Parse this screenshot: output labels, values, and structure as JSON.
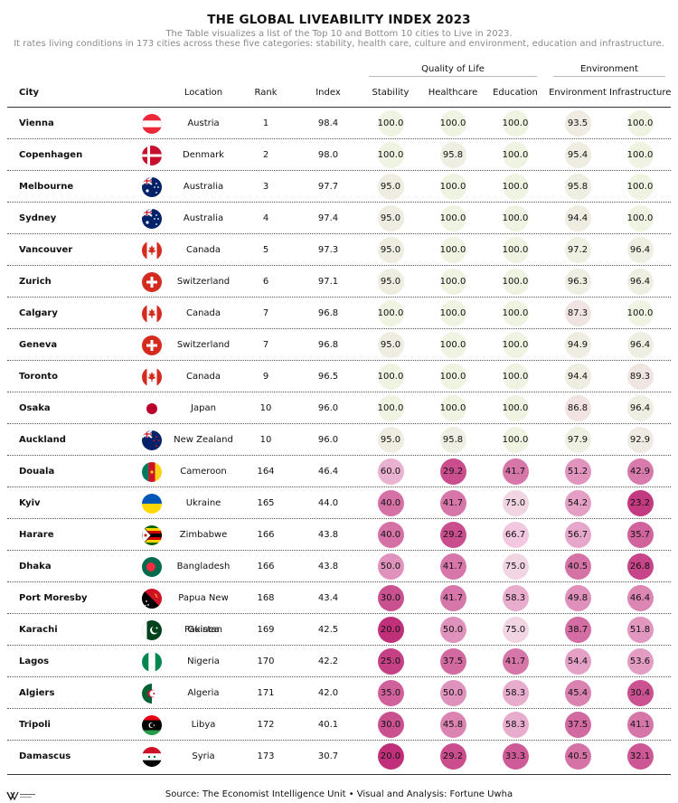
{
  "title": "THE GLOBAL LIVEABILITY INDEX 2023",
  "subtitle_1": "The Table visualizes a list of the Top 10 and Bottom 10 cities to Live in 2023.",
  "subtitle_2": "It rates living conditions in 173 cities across these five categories: stability, health care, culture and environment, education and infrastructure.",
  "groups": {
    "quality": "Quality of Life",
    "environment": "Environment"
  },
  "columns": {
    "city": "City",
    "location": "Location",
    "rank": "Rank",
    "index": "Index",
    "stability": "Stability",
    "healthcare": "Healthcare",
    "education": "Education",
    "environment": "Environment",
    "infrastructure": "Infrastructure"
  },
  "footer": "Source: The Economist Intelligence Unit • Visual and Analysis: Fortune Uwha",
  "logo_text": "FORTUNE UWHA",
  "colors": {
    "high": "#eef3e2",
    "low": "#c0307a",
    "rule": "#333333"
  },
  "chart_data": {
    "type": "table",
    "title": "THE GLOBAL LIVEABILITY INDEX 2023",
    "columns": [
      "City",
      "Location",
      "Rank",
      "Index",
      "Stability",
      "Healthcare",
      "Education",
      "Environment",
      "Infrastructure"
    ],
    "rows": [
      {
        "city": "Vienna",
        "location": "Austria",
        "flag": "austria-flag-icon",
        "rank": "1",
        "index": "98.4",
        "stability": "100.0",
        "healthcare": "100.0",
        "education": "100.0",
        "environment": "93.5",
        "infrastructure": "100.0"
      },
      {
        "city": "Copenhagen",
        "location": "Denmark",
        "flag": "denmark-flag-icon",
        "rank": "2",
        "index": "98.0",
        "stability": "100.0",
        "healthcare": "95.8",
        "education": "100.0",
        "environment": "95.4",
        "infrastructure": "100.0"
      },
      {
        "city": "Melbourne",
        "location": "Australia",
        "flag": "australia-flag-icon",
        "rank": "3",
        "index": "97.7",
        "stability": "95.0",
        "healthcare": "100.0",
        "education": "100.0",
        "environment": "95.8",
        "infrastructure": "100.0"
      },
      {
        "city": "Sydney",
        "location": "Australia",
        "flag": "australia-flag-icon",
        "rank": "4",
        "index": "97.4",
        "stability": "95.0",
        "healthcare": "100.0",
        "education": "100.0",
        "environment": "94.4",
        "infrastructure": "100.0"
      },
      {
        "city": "Vancouver",
        "location": "Canada",
        "flag": "canada-flag-icon",
        "rank": "5",
        "index": "97.3",
        "stability": "95.0",
        "healthcare": "100.0",
        "education": "100.0",
        "environment": "97.2",
        "infrastructure": "96.4"
      },
      {
        "city": "Zurich",
        "location": "Switzerland",
        "flag": "switzerland-flag-icon",
        "rank": "6",
        "index": "97.1",
        "stability": "95.0",
        "healthcare": "100.0",
        "education": "100.0",
        "environment": "96.3",
        "infrastructure": "96.4"
      },
      {
        "city": "Calgary",
        "location": "Canada",
        "flag": "canada-flag-icon",
        "rank": "7",
        "index": "96.8",
        "stability": "100.0",
        "healthcare": "100.0",
        "education": "100.0",
        "environment": "87.3",
        "infrastructure": "100.0"
      },
      {
        "city": "Geneva",
        "location": "Switzerland",
        "flag": "switzerland-flag-icon",
        "rank": "7",
        "index": "96.8",
        "stability": "95.0",
        "healthcare": "100.0",
        "education": "100.0",
        "environment": "94.9",
        "infrastructure": "96.4"
      },
      {
        "city": "Toronto",
        "location": "Canada",
        "flag": "canada-flag-icon",
        "rank": "9",
        "index": "96.5",
        "stability": "100.0",
        "healthcare": "100.0",
        "education": "100.0",
        "environment": "94.4",
        "infrastructure": "89.3"
      },
      {
        "city": "Osaka",
        "location": "Japan",
        "flag": "japan-flag-icon",
        "rank": "10",
        "index": "96.0",
        "stability": "100.0",
        "healthcare": "100.0",
        "education": "100.0",
        "environment": "86.8",
        "infrastructure": "96.4"
      },
      {
        "city": "Auckland",
        "location": "New Zealand",
        "flag": "new-zealand-flag-icon",
        "rank": "10",
        "index": "96.0",
        "stability": "95.0",
        "healthcare": "95.8",
        "education": "100.0",
        "environment": "97.9",
        "infrastructure": "92.9"
      },
      {
        "city": "Douala",
        "location": "Cameroon",
        "flag": "cameroon-flag-icon",
        "rank": "164",
        "index": "46.4",
        "stability": "60.0",
        "healthcare": "29.2",
        "education": "41.7",
        "environment": "51.2",
        "infrastructure": "42.9"
      },
      {
        "city": "Kyiv",
        "location": "Ukraine",
        "flag": "ukraine-flag-icon",
        "rank": "165",
        "index": "44.0",
        "stability": "40.0",
        "healthcare": "41.7",
        "education": "75.0",
        "environment": "54.2",
        "infrastructure": "23.2"
      },
      {
        "city": "Harare",
        "location": "Zimbabwe",
        "flag": "zimbabwe-flag-icon",
        "rank": "166",
        "index": "43.8",
        "stability": "40.0",
        "healthcare": "29.2",
        "education": "66.7",
        "environment": "56.7",
        "infrastructure": "35.7"
      },
      {
        "city": "Dhaka",
        "location": "Bangladesh",
        "flag": "bangladesh-flag-icon",
        "rank": "166",
        "index": "43.8",
        "stability": "50.0",
        "healthcare": "41.7",
        "education": "75.0",
        "environment": "40.5",
        "infrastructure": "26.8"
      },
      {
        "city": "Port Moresby",
        "location": "Papua New Guinea",
        "flag": "papua-new-guinea-flag-icon",
        "rank": "168",
        "index": "43.4",
        "stability": "30.0",
        "healthcare": "41.7",
        "education": "58.3",
        "environment": "49.8",
        "infrastructure": "46.4"
      },
      {
        "city": "Karachi",
        "location": "Pakistan",
        "flag": "pakistan-flag-icon",
        "rank": "169",
        "index": "42.5",
        "stability": "20.0",
        "healthcare": "50.0",
        "education": "75.0",
        "environment": "38.7",
        "infrastructure": "51.8"
      },
      {
        "city": "Lagos",
        "location": "Nigeria",
        "flag": "nigeria-flag-icon",
        "rank": "170",
        "index": "42.2",
        "stability": "25.0",
        "healthcare": "37.5",
        "education": "41.7",
        "environment": "54.4",
        "infrastructure": "53.6"
      },
      {
        "city": "Algiers",
        "location": "Algeria",
        "flag": "algeria-flag-icon",
        "rank": "171",
        "index": "42.0",
        "stability": "35.0",
        "healthcare": "50.0",
        "education": "58.3",
        "environment": "45.4",
        "infrastructure": "30.4"
      },
      {
        "city": "Tripoli",
        "location": "Libya",
        "flag": "libya-flag-icon",
        "rank": "172",
        "index": "40.1",
        "stability": "30.0",
        "healthcare": "45.8",
        "education": "58.3",
        "environment": "37.5",
        "infrastructure": "41.1"
      },
      {
        "city": "Damascus",
        "location": "Syria",
        "flag": "syria-flag-icon",
        "rank": "173",
        "index": "30.7",
        "stability": "20.0",
        "healthcare": "29.2",
        "education": "33.3",
        "environment": "40.5",
        "infrastructure": "32.1"
      }
    ]
  }
}
